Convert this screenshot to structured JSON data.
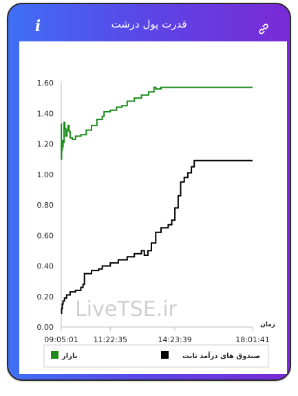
{
  "header": {
    "title": "قدرت پول درشت",
    "info_icon": "info-icon",
    "link_icon": "link-icon"
  },
  "colors": {
    "gradient_start": "#3f6ff5",
    "gradient_end": "#7a2ad6",
    "market_series": "#1a8a1a",
    "fixed_income_series": "#000000"
  },
  "watermark": "LiveTSE.ir",
  "chart_data": {
    "type": "line",
    "xlabel": "زمان",
    "ylabel": "",
    "ylim": [
      0,
      1.6
    ],
    "yticks": [
      "0.00",
      "0.20",
      "0.40",
      "0.60",
      "0.80",
      "1.00",
      "1.20",
      "1.40",
      "1.60"
    ],
    "xticks": [
      "09:05:01",
      "11:22:35",
      "14:23:39",
      "18:01:41"
    ],
    "grid": false,
    "legend_position": "bottom",
    "series": [
      {
        "name": "بازار",
        "color": "#1a8a1a",
        "points": [
          [
            "09:05:01",
            1.33
          ],
          [
            "09:05:20",
            1.1
          ],
          [
            "09:06:00",
            1.2
          ],
          [
            "09:07:00",
            1.16
          ],
          [
            "09:08:00",
            1.22
          ],
          [
            "09:09:00",
            1.18
          ],
          [
            "09:10:00",
            1.21
          ],
          [
            "09:13:00",
            1.34
          ],
          [
            "09:15:00",
            1.3
          ],
          [
            "09:18:00",
            1.25
          ],
          [
            "09:21:00",
            1.29
          ],
          [
            "09:24:00",
            1.32
          ],
          [
            "09:27:00",
            1.28
          ],
          [
            "09:30:00",
            1.24
          ],
          [
            "09:36:00",
            1.23
          ],
          [
            "09:45:00",
            1.25
          ],
          [
            "10:00:00",
            1.26
          ],
          [
            "10:15:00",
            1.29
          ],
          [
            "10:30:00",
            1.32
          ],
          [
            "10:45:00",
            1.36
          ],
          [
            "11:00:00",
            1.38
          ],
          [
            "11:05:00",
            1.41
          ],
          [
            "11:22:35",
            1.42
          ],
          [
            "11:40:00",
            1.44
          ],
          [
            "11:55:00",
            1.45
          ],
          [
            "12:10:00",
            1.48
          ],
          [
            "12:30:00",
            1.5
          ],
          [
            "12:50:00",
            1.52
          ],
          [
            "13:10:00",
            1.54
          ],
          [
            "13:25:00",
            1.57
          ],
          [
            "13:30:00",
            1.56
          ],
          [
            "13:45:00",
            1.57
          ],
          [
            "14:23:39",
            1.57
          ],
          [
            "15:30:00",
            1.57
          ],
          [
            "17:00:00",
            1.57
          ],
          [
            "18:01:41",
            1.57
          ]
        ]
      },
      {
        "name": "صندوق های درآمد ثابت",
        "color": "#000000",
        "points": [
          [
            "09:05:01",
            0.09
          ],
          [
            "09:06:00",
            0.12
          ],
          [
            "09:08:00",
            0.15
          ],
          [
            "09:10:00",
            0.17
          ],
          [
            "09:14:00",
            0.19
          ],
          [
            "09:20:00",
            0.21
          ],
          [
            "09:30:00",
            0.23
          ],
          [
            "09:45:00",
            0.24
          ],
          [
            "10:00:00",
            0.26
          ],
          [
            "10:06:00",
            0.28
          ],
          [
            "10:10:00",
            0.35
          ],
          [
            "10:30:00",
            0.37
          ],
          [
            "10:50:00",
            0.38
          ],
          [
            "11:00:00",
            0.4
          ],
          [
            "11:22:35",
            0.42
          ],
          [
            "11:45:00",
            0.44
          ],
          [
            "12:10:00",
            0.46
          ],
          [
            "12:30:00",
            0.48
          ],
          [
            "12:50:00",
            0.5
          ],
          [
            "12:58:00",
            0.47
          ],
          [
            "13:08:00",
            0.5
          ],
          [
            "13:18:00",
            0.55
          ],
          [
            "13:30:00",
            0.62
          ],
          [
            "13:45:00",
            0.65
          ],
          [
            "14:05:00",
            0.67
          ],
          [
            "14:15:00",
            0.7
          ],
          [
            "14:23:39",
            0.78
          ],
          [
            "14:33:00",
            0.86
          ],
          [
            "14:40:00",
            0.95
          ],
          [
            "14:50:00",
            0.98
          ],
          [
            "15:00:00",
            1.01
          ],
          [
            "15:10:00",
            1.05
          ],
          [
            "15:18:00",
            1.09
          ],
          [
            "16:00:00",
            1.09
          ],
          [
            "17:00:00",
            1.09
          ],
          [
            "18:01:41",
            1.09
          ]
        ]
      }
    ]
  }
}
